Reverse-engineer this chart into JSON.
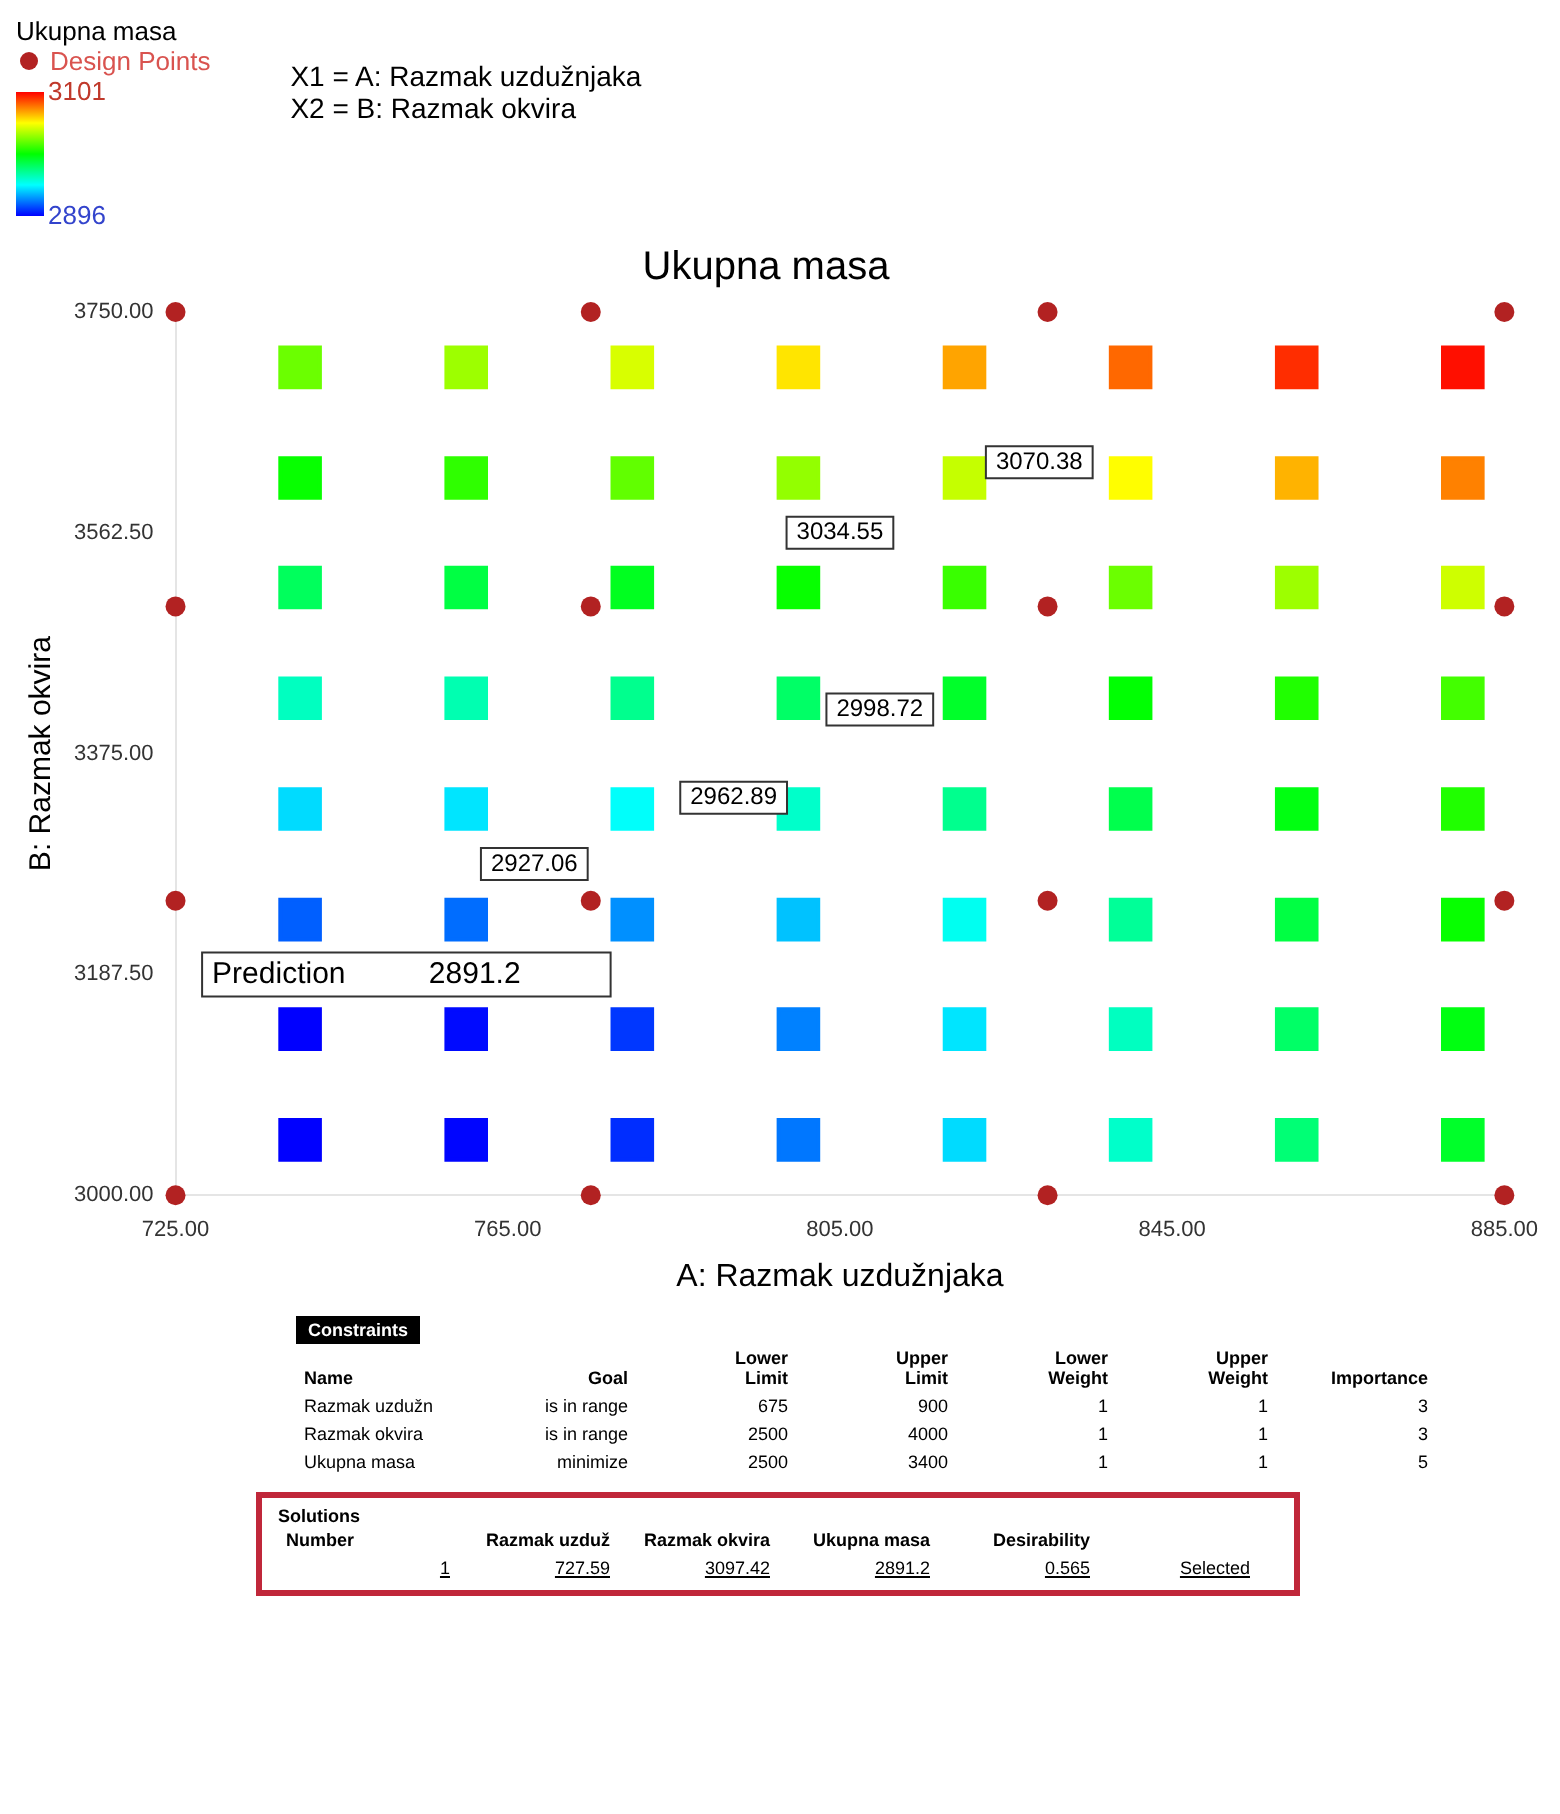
{
  "chart_data": {
    "type": "scatter",
    "title": "Ukupna masa",
    "xlabel": "A: Razmak uzdužnjaka",
    "ylabel": "B: Razmak okvira",
    "legend_title": "Ukupna masa",
    "legend": "top left",
    "grid": false,
    "clim": [
      2896,
      3101
    ],
    "cticks": [
      2896,
      3101
    ],
    "xlim": [
      725,
      885
    ],
    "xticks": [
      {
        "value": 725,
        "label": "725.00"
      },
      {
        "value": 765,
        "label": "765.00"
      },
      {
        "value": 805,
        "label": "805.00"
      },
      {
        "value": 845,
        "label": "845.00"
      },
      {
        "value": 885,
        "label": "885.00"
      }
    ],
    "ylim": [
      3000,
      3750
    ],
    "yticks": [
      {
        "value": 3000,
        "label": "3000.00"
      },
      {
        "value": 3187.5,
        "label": "3187.50"
      },
      {
        "value": 3375,
        "label": "3375.00"
      },
      {
        "value": 3562.5,
        "label": "3562.50"
      },
      {
        "value": 3750,
        "label": "3750.00"
      }
    ],
    "series": [
      {
        "type": "scatter",
        "marker": "square",
        "x": [
          740,
          760,
          780,
          800,
          820,
          840,
          860,
          880,
          740,
          760,
          780,
          800,
          820,
          840,
          860,
          880,
          740,
          760,
          780,
          800,
          820,
          840,
          860,
          880,
          740,
          760,
          780,
          800,
          820,
          840,
          860,
          880,
          740,
          760,
          780,
          800,
          820,
          840,
          860,
          880,
          740,
          760,
          780,
          800,
          820,
          840,
          860,
          880,
          740,
          760,
          780,
          800,
          820,
          840,
          860,
          880,
          740,
          760,
          780,
          800,
          820,
          840,
          860,
          880
        ],
        "values": [
          3047,
          3047,
          3047,
          3047,
          3047,
          3047,
          3047,
          3047,
          3141,
          3141,
          3141,
          3141,
          3141,
          3141,
          3141,
          3141,
          3234,
          3234,
          3234,
          3234,
          3234,
          3234,
          3234,
          3234,
          3328,
          3328,
          3328,
          3328,
          3328,
          3328,
          3328,
          3328,
          3422,
          3422,
          3422,
          3422,
          3422,
          3422,
          3422,
          3422,
          3516,
          3516,
          3516,
          3516,
          3516,
          3516,
          3516,
          3516,
          3609,
          3609,
          3609,
          3609,
          3609,
          3609,
          3609,
          3609,
          3703,
          3703,
          3703,
          3703,
          3703,
          3703,
          3703,
          3703
        ],
        "colors": [
          "#0000ff",
          "#0005ff",
          "#002dff",
          "#0077ff",
          "#00dbff",
          "#00ffca",
          "#00ff75",
          "#00ff2a",
          "#0000ff",
          "#000aff",
          "#0037ff",
          "#0081ff",
          "#00e5ff",
          "#00ffc0",
          "#00ff66",
          "#00ff11",
          "#005fff",
          "#006dff",
          "#0090ff",
          "#00c2ff",
          "#00fff1",
          "#00ff98",
          "#00ff43",
          "#07ff00",
          "#00dbff",
          "#00e5ff",
          "#00fffb",
          "#00ffca",
          "#00ff8e",
          "#00ff4d",
          "#00ff11",
          "#20ff00",
          "#00ffc0",
          "#00ffb1",
          "#00ff8e",
          "#00ff66",
          "#00ff2a",
          "#00ff02",
          "#20ff00",
          "#43ff00",
          "#00ff5c",
          "#00ff43",
          "#00ff20",
          "#07ff00",
          "#39ff00",
          "#6bff00",
          "#9dff00",
          "#ceff00",
          "#07ff00",
          "#2fff00",
          "#61ff00",
          "#93ff00",
          "#c5ff00",
          "#fffe00",
          "#ffb300",
          "#ff8100",
          "#6bff00",
          "#9dff00",
          "#d8ff00",
          "#ffe500",
          "#ffa400",
          "#ff6800",
          "#ff2d00",
          "#ff0f00"
        ],
        "cvalues": [
          2896,
          2897,
          2905,
          2920,
          2940,
          2958,
          2975,
          2990,
          2896,
          2898,
          2907,
          2922,
          2942,
          2960,
          2978,
          2995,
          2915,
          2918,
          2925,
          2935,
          2950,
          2968,
          2985,
          3000,
          2940,
          2942,
          2948,
          2958,
          2970,
          2983,
          2995,
          3005,
          2960,
          2963,
          2970,
          2978,
          2990,
          2998,
          3005,
          3012,
          2980,
          2985,
          2992,
          3000,
          3010,
          3020,
          3030,
          3040,
          3000,
          3008,
          3018,
          3028,
          3038,
          3050,
          3065,
          3075,
          3020,
          3030,
          3042,
          3055,
          3068,
          3080,
          3092,
          3098
        ]
      },
      {
        "name": "Design Points",
        "type": "scatter",
        "color": "#b22222",
        "marker": "circle",
        "x": [
          725,
          775,
          830,
          885,
          725,
          775,
          830,
          885,
          725,
          775,
          830,
          885,
          725,
          775,
          830,
          885
        ],
        "values": [
          3750,
          3750,
          3750,
          3750,
          3500,
          3500,
          3500,
          3500,
          3250,
          3250,
          3250,
          3250,
          3000,
          3000,
          3000,
          3000
        ]
      }
    ],
    "annotations": [
      "X1 = A: Razmak uzdužnjaka",
      "X2 = B: Razmak okvira",
      "3070.38",
      "3034.55",
      "2998.72",
      "2962.89",
      "2927.06",
      "Prediction          2891.2",
      "Constraints",
      "Name",
      "Goal",
      "Lower Limit",
      "Upper Limit",
      "Lower Weight",
      "Upper Weight",
      "Importance",
      "Razmak uzdužn",
      "is in range",
      "675",
      "900",
      "1",
      "1",
      "3",
      "Razmak okvira",
      "is in range",
      "2500",
      "4000",
      "1",
      "1",
      "3",
      "Ukupna masa",
      "minimize",
      "2500",
      "3400",
      "1",
      "1",
      "5",
      "Solutions",
      "Number",
      "Razmak uzduž",
      "Razmak okvira",
      "Ukupna masa",
      "Desirability",
      "1",
      "727.59",
      "3097.42",
      "2891.2",
      "0.565",
      "Selected"
    ]
  }
}
